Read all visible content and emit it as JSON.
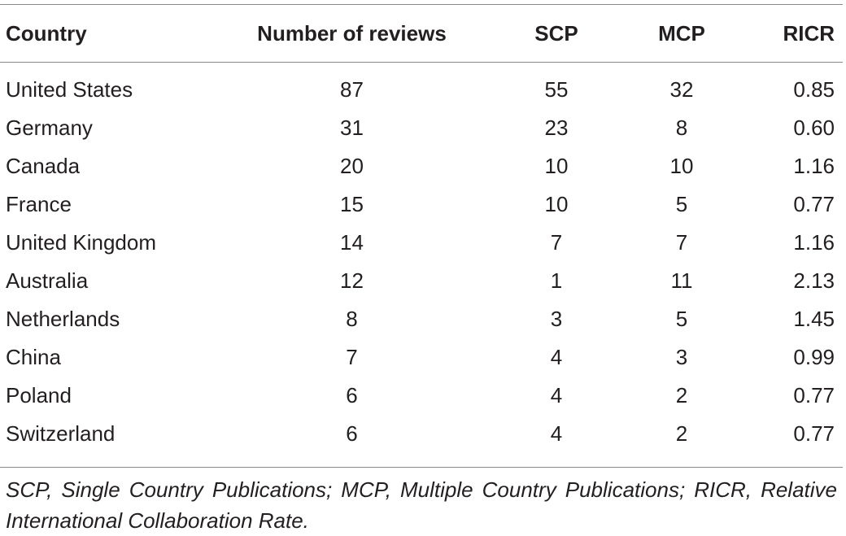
{
  "table": {
    "headers": {
      "country": "Country",
      "reviews": "Number of reviews",
      "scp": "SCP",
      "mcp": "MCP",
      "ricr": "RICR"
    },
    "rows": [
      {
        "country": "United States",
        "reviews": "87",
        "scp": "55",
        "mcp": "32",
        "ricr": "0.85"
      },
      {
        "country": "Germany",
        "reviews": "31",
        "scp": "23",
        "mcp": "8",
        "ricr": "0.60"
      },
      {
        "country": "Canada",
        "reviews": "20",
        "scp": "10",
        "mcp": "10",
        "ricr": "1.16"
      },
      {
        "country": "France",
        "reviews": "15",
        "scp": "10",
        "mcp": "5",
        "ricr": "0.77"
      },
      {
        "country": "United Kingdom",
        "reviews": "14",
        "scp": "7",
        "mcp": "7",
        "ricr": "1.16"
      },
      {
        "country": "Australia",
        "reviews": "12",
        "scp": "1",
        "mcp": "11",
        "ricr": "2.13"
      },
      {
        "country": "Netherlands",
        "reviews": "8",
        "scp": "3",
        "mcp": "5",
        "ricr": "1.45"
      },
      {
        "country": "China",
        "reviews": "7",
        "scp": "4",
        "mcp": "3",
        "ricr": "0.99"
      },
      {
        "country": "Poland",
        "reviews": "6",
        "scp": "4",
        "mcp": "2",
        "ricr": "0.77"
      },
      {
        "country": "Switzerland",
        "reviews": "6",
        "scp": "4",
        "mcp": "2",
        "ricr": "0.77"
      }
    ]
  },
  "footnote": "SCP, Single Country Publications; MCP, Multiple Country Publications; RICR, Relative International Collaboration Rate.",
  "colors": {
    "text": "#231f20",
    "rule": "#8a8a8a",
    "background": "#ffffff"
  }
}
